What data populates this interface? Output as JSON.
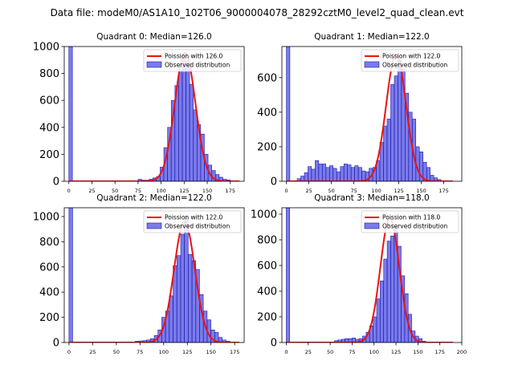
{
  "figure_title": "Data file: modeM0/AS1A10_102T06_9000004078_28292cztM0_level2_quad_clean.evt",
  "colors": {
    "hist_fill": "#7b7bea",
    "hist_edge": "#1a1ab0",
    "curve": "#ee1111"
  },
  "chart_data": [
    {
      "type": "bar",
      "title": "Quadrant 0: Median=126.0",
      "legend": {
        "curve": "Poission with 126.0",
        "hist": "Observed distribution",
        "placement": "top-right"
      },
      "xlim": [
        -5,
        190
      ],
      "ylim": [
        0,
        1000
      ],
      "xticks": [
        0,
        25,
        50,
        75,
        100,
        125,
        150,
        175
      ],
      "yticks": [
        0,
        200,
        400,
        600,
        800,
        1000
      ],
      "bin_width": 3.85,
      "bins": [
        [
          0,
          1000
        ],
        [
          75,
          15
        ],
        [
          79,
          8
        ],
        [
          83,
          8
        ],
        [
          87,
          15
        ],
        [
          91,
          25
        ],
        [
          95,
          35
        ],
        [
          99,
          105
        ],
        [
          103,
          250
        ],
        [
          107,
          400
        ],
        [
          111,
          600
        ],
        [
          115,
          710
        ],
        [
          119,
          820
        ],
        [
          123,
          950
        ],
        [
          127,
          890
        ],
        [
          131,
          720
        ],
        [
          135,
          530
        ],
        [
          139,
          420
        ],
        [
          143,
          350
        ],
        [
          147,
          200
        ],
        [
          151,
          120
        ],
        [
          155,
          80
        ],
        [
          159,
          50
        ],
        [
          163,
          30
        ],
        [
          167,
          15
        ],
        [
          171,
          10
        ]
      ],
      "curve": {
        "mean": 126,
        "sigma": 11.2,
        "amp": 955,
        "x_range": [
          0,
          185
        ]
      }
    },
    {
      "type": "bar",
      "title": "Quadrant 1: Median=122.0",
      "legend": {
        "curve": "Poission with 122.0",
        "hist": "Observed distribution",
        "placement": "top-right"
      },
      "xlim": [
        -5,
        195
      ],
      "ylim": [
        0,
        780
      ],
      "xticks": [
        0,
        25,
        50,
        75,
        100,
        125,
        150,
        175
      ],
      "yticks": [
        0,
        200,
        400,
        600
      ],
      "bin_width": 3.85,
      "bins": [
        [
          0,
          780
        ],
        [
          12,
          15
        ],
        [
          16,
          30
        ],
        [
          20,
          50
        ],
        [
          24,
          85
        ],
        [
          28,
          70
        ],
        [
          32,
          120
        ],
        [
          36,
          100
        ],
        [
          40,
          100
        ],
        [
          44,
          80
        ],
        [
          48,
          90
        ],
        [
          52,
          75
        ],
        [
          56,
          55
        ],
        [
          60,
          85
        ],
        [
          64,
          100
        ],
        [
          68,
          95
        ],
        [
          72,
          80
        ],
        [
          76,
          90
        ],
        [
          80,
          80
        ],
        [
          84,
          60
        ],
        [
          88,
          55
        ],
        [
          92,
          75
        ],
        [
          96,
          80
        ],
        [
          100,
          120
        ],
        [
          104,
          225
        ],
        [
          108,
          320
        ],
        [
          112,
          360
        ],
        [
          116,
          560
        ],
        [
          120,
          610
        ],
        [
          124,
          700
        ],
        [
          128,
          650
        ],
        [
          132,
          510
        ],
        [
          136,
          400
        ],
        [
          140,
          360
        ],
        [
          144,
          200
        ],
        [
          148,
          170
        ],
        [
          152,
          110
        ],
        [
          156,
          80
        ],
        [
          160,
          35
        ],
        [
          164,
          20
        ],
        [
          168,
          10
        ]
      ],
      "curve": {
        "mean": 122,
        "sigma": 11.0,
        "amp": 735,
        "x_range": [
          50,
          185
        ]
      }
    },
    {
      "type": "bar",
      "title": "Quadrant 2: Median=122.0",
      "legend": {
        "curve": "Poission with 122.0",
        "hist": "Observed distribution",
        "placement": "top-right"
      },
      "xlim": [
        -5,
        185
      ],
      "ylim": [
        0,
        1070
      ],
      "xticks": [
        0,
        25,
        50,
        75,
        100,
        125,
        150,
        175
      ],
      "yticks": [
        0,
        200,
        400,
        600,
        800,
        1000
      ],
      "bin_width": 3.85,
      "bins": [
        [
          0,
          1070
        ],
        [
          70,
          10
        ],
        [
          74,
          12
        ],
        [
          78,
          15
        ],
        [
          82,
          20
        ],
        [
          86,
          30
        ],
        [
          90,
          55
        ],
        [
          94,
          100
        ],
        [
          98,
          200
        ],
        [
          102,
          250
        ],
        [
          106,
          370
        ],
        [
          110,
          610
        ],
        [
          114,
          690
        ],
        [
          118,
          860
        ],
        [
          122,
          1000
        ],
        [
          126,
          700
        ],
        [
          130,
          650
        ],
        [
          134,
          580
        ],
        [
          138,
          380
        ],
        [
          142,
          250
        ],
        [
          146,
          180
        ],
        [
          150,
          100
        ],
        [
          154,
          80
        ],
        [
          158,
          40
        ],
        [
          162,
          20
        ],
        [
          166,
          10
        ]
      ],
      "curve": {
        "mean": 122,
        "sigma": 11.0,
        "amp": 960,
        "x_range": [
          10,
          180
        ]
      }
    },
    {
      "type": "bar",
      "title": "Quadrant 3: Median=118.0",
      "legend": {
        "curve": "Poission with 118.0",
        "hist": "Observed distribution",
        "placement": "top-right"
      },
      "xlim": [
        -5,
        200
      ],
      "ylim": [
        0,
        1050
      ],
      "xticks": [
        0,
        25,
        50,
        75,
        100,
        125,
        150,
        175,
        200
      ],
      "yticks": [
        0,
        200,
        400,
        600,
        800,
        1000
      ],
      "bin_width": 3.85,
      "bins": [
        [
          0,
          1050
        ],
        [
          55,
          15
        ],
        [
          59,
          20
        ],
        [
          63,
          25
        ],
        [
          67,
          30
        ],
        [
          71,
          30
        ],
        [
          75,
          35
        ],
        [
          79,
          25
        ],
        [
          83,
          30
        ],
        [
          87,
          50
        ],
        [
          91,
          80
        ],
        [
          95,
          130
        ],
        [
          99,
          200
        ],
        [
          103,
          340
        ],
        [
          107,
          480
        ],
        [
          111,
          650
        ],
        [
          115,
          790
        ],
        [
          119,
          830
        ],
        [
          123,
          900
        ],
        [
          127,
          750
        ],
        [
          131,
          520
        ],
        [
          135,
          380
        ],
        [
          139,
          220
        ],
        [
          143,
          90
        ],
        [
          147,
          50
        ],
        [
          151,
          30
        ],
        [
          155,
          10
        ]
      ],
      "curve": {
        "mean": 118,
        "sigma": 10.8,
        "amp": 970,
        "x_range": [
          10,
          190
        ]
      }
    }
  ]
}
